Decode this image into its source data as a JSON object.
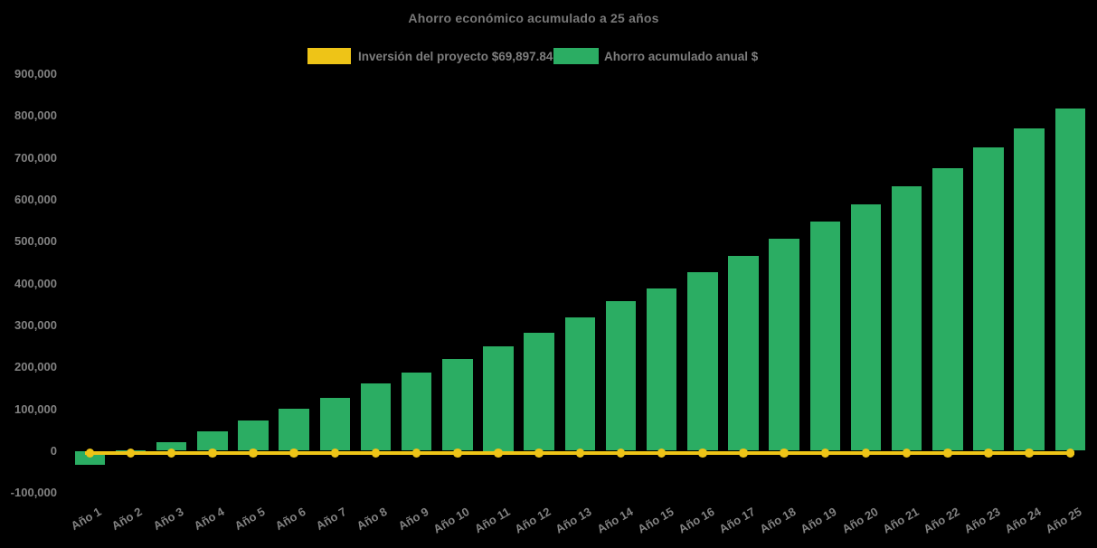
{
  "title": "Ahorro económico acumulado a 25 años",
  "legend": [
    {
      "label": "Inversión del proyecto $69,897.84",
      "color": "#EEC417",
      "type": "line"
    },
    {
      "label": "Ahorro acumulado anual $",
      "color": "#2BAD63",
      "type": "bar"
    }
  ],
  "colors": {
    "background": "#000000",
    "bar_green": "#2BAD63",
    "line_yellow": "#EEC417",
    "text_gray": "#828282"
  },
  "chart_data": {
    "type": "bar",
    "title": "Ahorro económico acumulado a 25 años",
    "categories": [
      "Año 1",
      "Año 2",
      "Año 3",
      "Año 4",
      "Año 5",
      "Año 6",
      "Año 7",
      "Año 8",
      "Año 9",
      "Año 10",
      "Año 11",
      "Año 12",
      "Año 13",
      "Año 14",
      "Año 15",
      "Año 16",
      "Año 17",
      "Año 18",
      "Año 19",
      "Año 20",
      "Año 21",
      "Año 22",
      "Año 23",
      "Año 24",
      "Año 25"
    ],
    "series": [
      {
        "name": "Inversión del proyecto $69,897.84",
        "type": "line",
        "color": "#EEC417",
        "marker": "circle",
        "values": [
          0,
          0,
          0,
          0,
          0,
          0,
          0,
          0,
          0,
          0,
          0,
          0,
          0,
          0,
          0,
          0,
          0,
          0,
          0,
          0,
          0,
          0,
          0,
          0,
          0
        ]
      },
      {
        "name": "Ahorro acumulado anual $",
        "type": "bar",
        "color": "#2BAD63",
        "values": [
          -33000,
          1000,
          20000,
          46000,
          73000,
          101000,
          126000,
          160000,
          187000,
          218000,
          250000,
          282000,
          318000,
          356000,
          387000,
          426000,
          466000,
          507000,
          547000,
          588000,
          631000,
          674000,
          723000,
          769000,
          817000
        ]
      }
    ],
    "xlabel": "",
    "ylabel": "",
    "ylim": [
      -100000,
      900000
    ],
    "ytick_step": 100000,
    "ytick_labels": [
      "-100,000",
      "0",
      "100,000",
      "200,000",
      "300,000",
      "400,000",
      "500,000",
      "600,000",
      "700,000",
      "800,000",
      "900,000"
    ],
    "grid": false,
    "legend_position": "top-center",
    "axis_lines": false
  }
}
